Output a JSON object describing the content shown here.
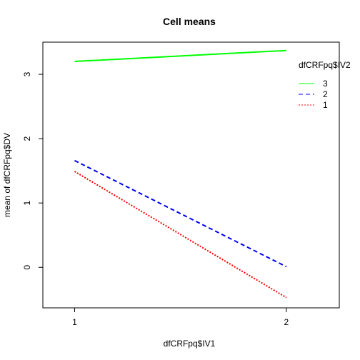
{
  "chart_data": {
    "type": "line",
    "title": "Cell means",
    "xlabel": "dfCRFpq$IV1",
    "ylabel": "mean of  dfCRFpq$DV",
    "x": [
      1,
      2
    ],
    "xlim": [
      0.85,
      2.25
    ],
    "ylim": [
      -0.63,
      3.5
    ],
    "xticks": [
      "1",
      "2"
    ],
    "yticks": [
      "0",
      "1",
      "2",
      "3"
    ],
    "grid": false,
    "legend": {
      "title": "dfCRFpq$IV2",
      "placement": "right-top",
      "entries": [
        "3",
        "2",
        "1"
      ]
    },
    "series": [
      {
        "name": "3",
        "values": [
          3.2,
          3.37
        ],
        "color": "#00ff00",
        "dash": "solid"
      },
      {
        "name": "2",
        "values": [
          1.66,
          0.01
        ],
        "color": "#0000ff",
        "dash": "dashed"
      },
      {
        "name": "1",
        "values": [
          1.49,
          -0.47
        ],
        "color": "#ff0000",
        "dash": "dotted"
      }
    ]
  }
}
